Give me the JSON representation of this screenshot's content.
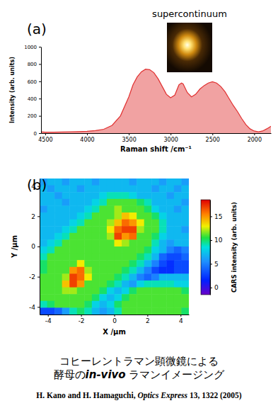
{
  "chart_data": [
    {
      "type": "area",
      "title": "(a)",
      "color": "#e03030",
      "x": [
        4550,
        4500,
        4400,
        4300,
        4200,
        4100,
        4000,
        3900,
        3800,
        3700,
        3600,
        3500,
        3450,
        3400,
        3350,
        3300,
        3250,
        3200,
        3150,
        3100,
        3050,
        3000,
        2950,
        2900,
        2870,
        2850,
        2800,
        2750,
        2700,
        2650,
        2600,
        2550,
        2500,
        2450,
        2400,
        2350,
        2300,
        2250,
        2200,
        2150,
        2100,
        2050,
        2000,
        1950,
        1900,
        1850,
        1800
      ],
      "values": [
        15,
        12,
        12,
        14,
        15,
        18,
        22,
        30,
        45,
        90,
        200,
        420,
        560,
        650,
        710,
        740,
        735,
        700,
        630,
        540,
        450,
        410,
        440,
        560,
        580,
        570,
        470,
        420,
        450,
        510,
        550,
        580,
        595,
        580,
        540,
        480,
        400,
        320,
        250,
        170,
        100,
        50,
        25,
        15,
        25,
        50,
        80
      ],
      "xlim": [
        4550,
        1800
      ],
      "xticks": [
        4500,
        4000,
        3500,
        3000,
        2500,
        2000
      ],
      "ylim": [
        0,
        1000
      ],
      "yticks": [
        0,
        200,
        400,
        600,
        800,
        1000
      ],
      "xlabel": "Raman shift /cm⁻¹",
      "ylabel": "Intensity (arb. units)",
      "annotations": [
        "supercontinuum"
      ]
    },
    {
      "type": "heatmap",
      "title": "(b)",
      "x": [
        -4.275,
        -3.825,
        -3.375,
        -2.925,
        -2.475,
        -2.025,
        -1.575,
        -1.125,
        -0.675,
        -0.225,
        0.225,
        0.675,
        1.125,
        1.575,
        2.025,
        2.475,
        2.925,
        3.375,
        3.825,
        4.275
      ],
      "y": [
        4.275,
        3.825,
        3.375,
        2.925,
        2.475,
        2.025,
        1.575,
        1.125,
        0.675,
        0.225,
        -0.225,
        -0.675,
        -1.125,
        -1.575,
        -2.025,
        -2.475,
        -2.925,
        -3.375,
        -3.825,
        -4.275
      ],
      "z": [
        [
          6,
          7,
          7,
          6,
          7,
          7,
          7,
          6,
          7,
          7,
          7,
          7,
          6,
          7,
          7,
          7,
          6,
          7,
          7,
          6
        ],
        [
          7,
          6,
          7,
          7,
          7,
          6,
          7,
          7,
          7,
          7,
          7,
          7,
          7,
          7,
          7,
          6,
          7,
          7,
          6,
          7
        ],
        [
          7,
          7,
          6,
          7,
          7,
          7,
          7,
          7,
          8,
          9,
          9,
          9,
          8,
          7,
          7,
          7,
          7,
          6,
          7,
          7
        ],
        [
          7,
          7,
          7,
          6,
          7,
          7,
          7,
          8,
          9,
          11,
          11,
          11,
          11,
          10,
          9,
          7,
          7,
          7,
          7,
          6
        ],
        [
          6,
          7,
          7,
          7,
          7,
          7,
          8,
          9,
          11,
          11,
          12,
          11,
          11,
          11,
          10,
          8,
          7,
          7,
          6,
          7
        ],
        [
          7,
          7,
          7,
          7,
          7,
          8,
          9,
          11,
          11,
          11,
          12,
          14,
          13,
          11,
          11,
          10,
          8,
          7,
          7,
          7
        ],
        [
          7,
          7,
          7,
          7,
          8,
          9,
          11,
          11,
          11,
          12,
          14,
          16,
          15,
          13,
          11,
          11,
          9,
          7,
          7,
          7
        ],
        [
          7,
          7,
          7,
          8,
          9,
          11,
          11,
          11,
          11,
          13,
          16,
          17,
          17,
          12,
          11,
          11,
          9,
          7,
          7,
          6
        ],
        [
          7,
          7,
          8,
          9,
          11,
          11,
          11,
          11,
          11,
          12,
          17,
          15,
          16,
          11,
          11,
          10,
          8,
          7,
          7,
          7
        ],
        [
          7,
          8,
          9,
          11,
          11,
          11,
          11,
          11,
          11,
          11,
          13,
          12,
          11,
          11,
          11,
          9,
          7,
          6,
          7,
          7
        ],
        [
          8,
          9,
          11,
          11,
          11,
          11,
          11,
          11,
          11,
          11,
          11,
          11,
          11,
          11,
          10,
          8,
          7,
          5,
          4,
          5
        ],
        [
          9,
          11,
          11,
          11,
          11,
          11,
          11,
          11,
          11,
          11,
          11,
          11,
          11,
          10,
          9,
          7,
          4,
          3,
          3,
          4
        ],
        [
          10,
          11,
          11,
          11,
          11,
          13,
          11,
          11,
          11,
          11,
          11,
          11,
          10,
          9,
          7,
          5,
          3,
          2,
          3,
          3
        ],
        [
          10,
          11,
          11,
          11,
          15,
          16,
          12,
          11,
          11,
          11,
          11,
          10,
          9,
          7,
          5,
          3,
          2,
          2,
          3,
          3
        ],
        [
          11,
          11,
          11,
          12,
          17,
          16,
          13,
          11,
          11,
          11,
          10,
          9,
          7,
          5,
          4,
          5,
          7,
          7,
          7,
          7
        ],
        [
          11,
          11,
          11,
          14,
          17,
          15,
          11,
          11,
          11,
          10,
          9,
          7,
          6,
          8,
          9,
          9,
          9,
          9,
          8,
          8
        ],
        [
          11,
          11,
          11,
          12,
          12,
          11,
          11,
          11,
          10,
          8,
          7,
          8,
          10,
          11,
          11,
          11,
          11,
          11,
          11,
          10
        ],
        [
          11,
          11,
          11,
          11,
          11,
          11,
          11,
          10,
          8,
          7,
          8,
          10,
          11,
          11,
          11,
          11,
          11,
          11,
          11,
          11
        ],
        [
          9,
          10,
          11,
          11,
          11,
          11,
          10,
          8,
          7,
          8,
          10,
          11,
          11,
          11,
          11,
          11,
          11,
          11,
          11,
          11
        ],
        [
          3,
          3,
          4,
          6,
          9,
          10,
          9,
          7,
          6,
          7,
          9,
          11,
          11,
          11,
          11,
          11,
          11,
          11,
          11,
          10
        ]
      ],
      "xlim": [
        -4.5,
        4.5
      ],
      "xticks": [
        -4,
        -2,
        0,
        2,
        4
      ],
      "ylim": [
        -4.5,
        4.5
      ],
      "yticks": [
        -4,
        -2,
        0,
        2,
        4
      ],
      "xlabel": "X /µm",
      "ylabel": "Y /µm",
      "colorbar": {
        "label": "CARS intensity (arb. units)",
        "range": [
          -1.5,
          18.5
        ],
        "ticks": [
          0,
          5,
          10,
          15
        ]
      }
    }
  ],
  "caption": [
    [
      "コヒーレントラマン顕微鏡による"
    ],
    [
      "酵母の",
      "in-vivo",
      " ラマンイメージング"
    ]
  ],
  "citation": [
    "H. Kano and H. Hamaguchi, ",
    "Optics Express",
    " 13, 1322 (2005)"
  ]
}
